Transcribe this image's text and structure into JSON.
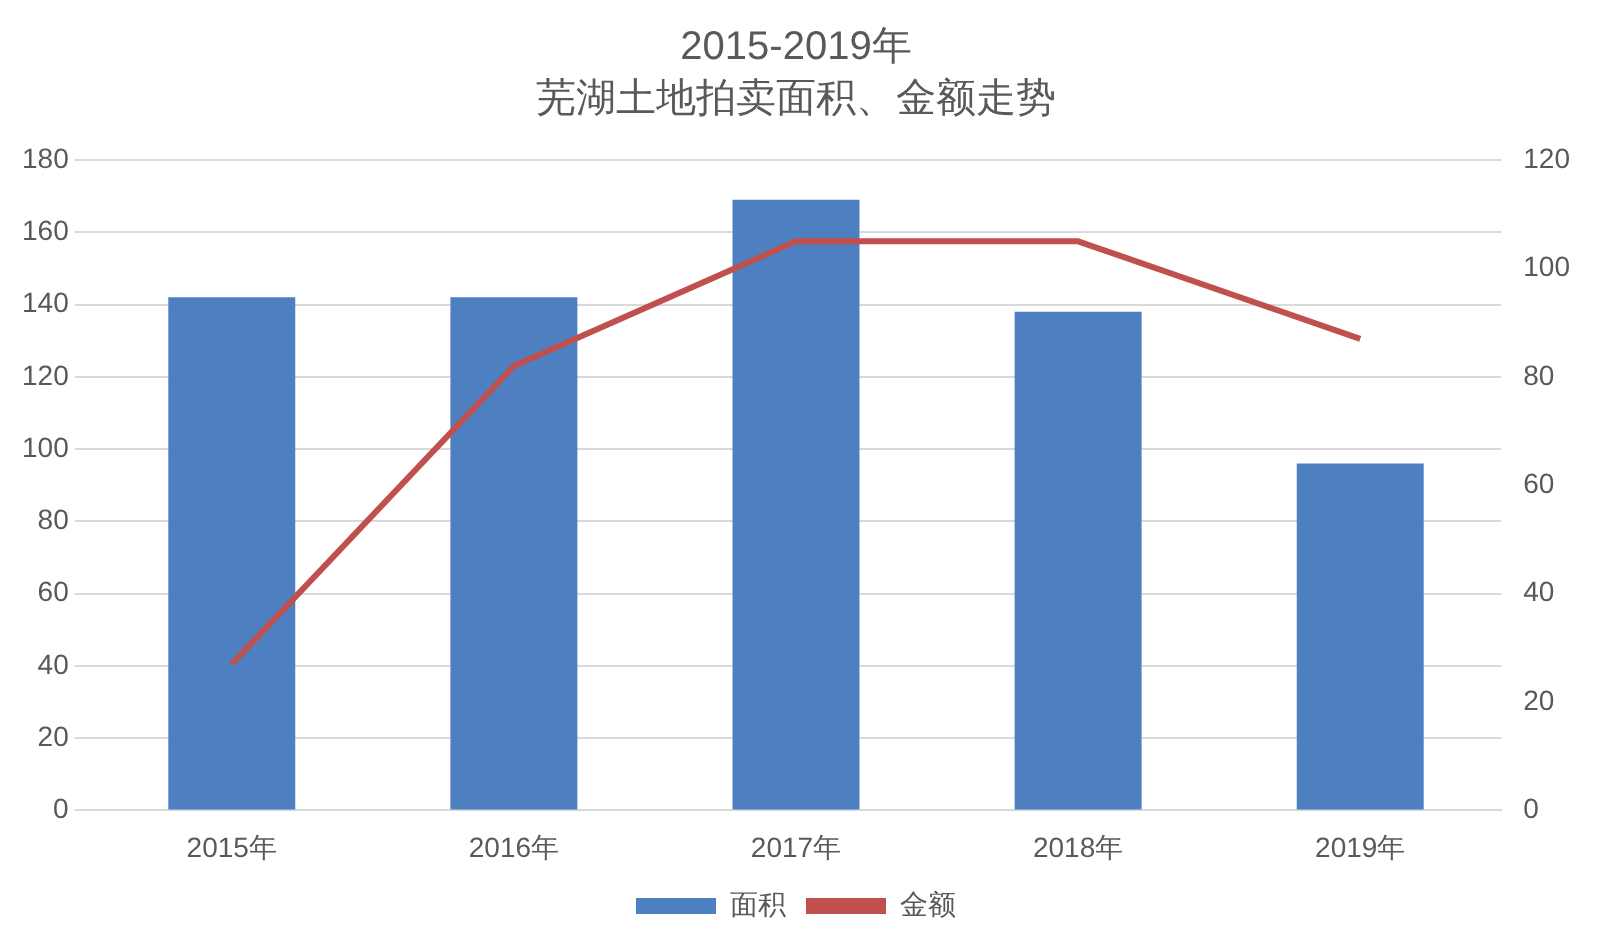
{
  "chart_data": {
    "type": "bar",
    "title": "2015-2019年",
    "subtitle": "芜湖土地拍卖面积、金额走势",
    "categories": [
      "2015年",
      "2016年",
      "2017年",
      "2018年",
      "2019年"
    ],
    "series": [
      {
        "name": "面积",
        "color": "#4e7fc0",
        "values": [
          142,
          142,
          169,
          138,
          96
        ]
      },
      {
        "name": "金额",
        "type": "line",
        "axis": "y2",
        "color": "#c0504d",
        "values": [
          27,
          82,
          105,
          105,
          87
        ]
      }
    ],
    "ylim": [
      0,
      180
    ],
    "yticks": [
      0,
      20,
      40,
      60,
      80,
      100,
      120,
      140,
      160,
      180
    ],
    "y2lim": [
      0,
      120
    ],
    "y2ticks": [
      0,
      20,
      40,
      60,
      80,
      100,
      120
    ],
    "grid": "y",
    "legend": "bottom",
    "marker": "none",
    "line_style": "solid"
  }
}
